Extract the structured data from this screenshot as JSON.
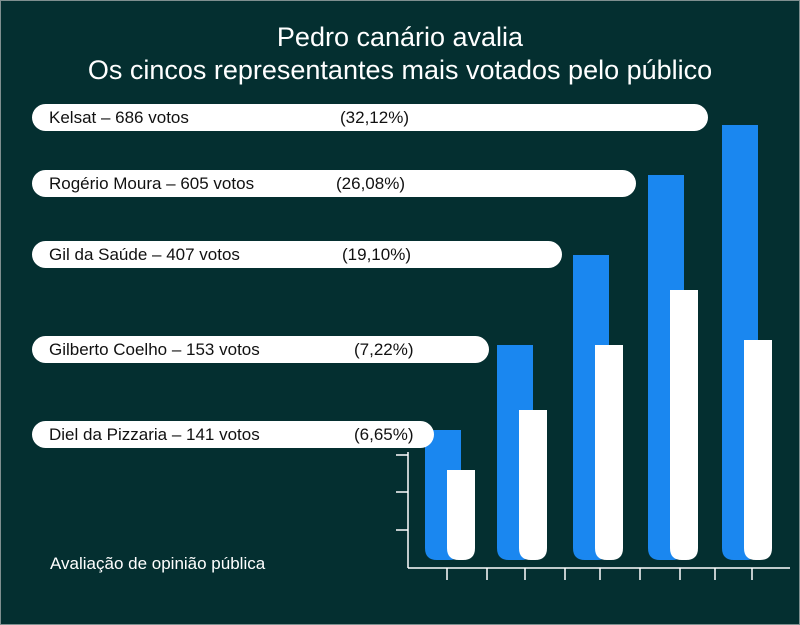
{
  "chart_data": {
    "type": "bar",
    "title": "Pedro canário avalia",
    "subtitle": "Os cincos representantes mais votados pelo público",
    "footer": "Avaliação de opinião pública",
    "entries": [
      {
        "name": "Kelsat",
        "label": "Kelsat – 686 votos",
        "votes": 686,
        "percent_label": "(32,12%)",
        "percent": 32.12
      },
      {
        "name": "Rogério Moura",
        "label": "Rogério Moura – 605 votos",
        "votes": 605,
        "percent_label": "(26,08%)",
        "percent": 26.08
      },
      {
        "name": "Gil da Saúde",
        "label": "Gil da Saúde – 407 votos",
        "votes": 407,
        "percent_label": "(19,10%)",
        "percent": 19.1
      },
      {
        "name": "Gilberto Coelho",
        "label": "Gilberto Coelho – 153 votos",
        "votes": 153,
        "percent_label": "(7,22%)",
        "percent": 7.22
      },
      {
        "name": "Diel da Pizzaria",
        "label": "Diel da Pizzaria – 141 votos",
        "votes": 141,
        "percent_label": "(6,65%)",
        "percent": 6.65
      }
    ],
    "bars_left_to_right": {
      "blue": [
        130,
        215,
        305,
        385,
        435
      ],
      "white": [
        90,
        150,
        215,
        270,
        220
      ]
    },
    "colors": {
      "background": "#042f30",
      "blue_bar": "#1a87f0",
      "white_bar": "#ffffff",
      "pill": "#ffffff",
      "text": "#ffffff"
    },
    "grid": false,
    "legend": "none"
  }
}
